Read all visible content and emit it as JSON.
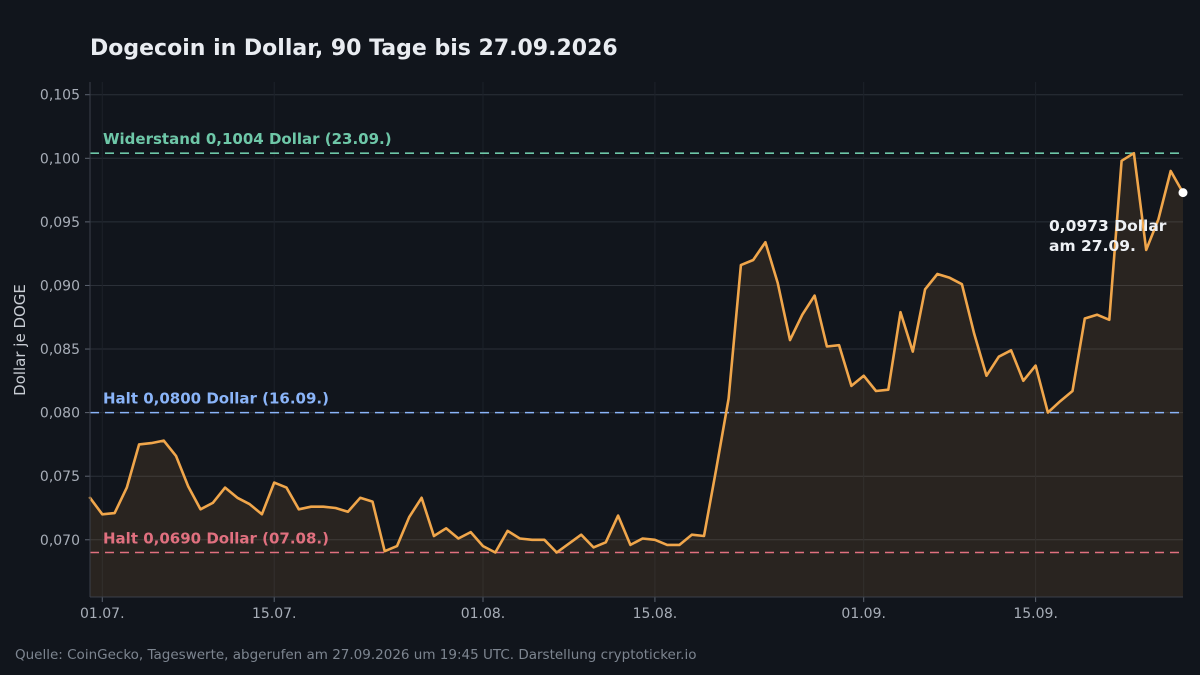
{
  "title": "Dogecoin in Dollar, 90 Tage bis 27.09.2026",
  "source": "Quelle: CoinGecko, Tageswerte, abgerufen am 27.09.2026 um 19:45 UTC. Darstellung cryptoticker.io",
  "colors": {
    "background": "#11151c",
    "line": "#f0a64b",
    "resistance": "#6ec7a8",
    "support_high": "#8ab4f8",
    "support_low": "#e0707f"
  },
  "chart_data": {
    "type": "line",
    "title": "Dogecoin in Dollar, 90 Tage bis 27.09.2026",
    "xlabel": "",
    "ylabel": "Dollar je DOGE",
    "x_start": "2026-06-30",
    "x_end": "2026-09-27",
    "ylim": [
      0.0655,
      0.106
    ],
    "grid": true,
    "yticks": [
      {
        "value": 0.07,
        "label": "0,070"
      },
      {
        "value": 0.075,
        "label": "0,075"
      },
      {
        "value": 0.08,
        "label": "0,080"
      },
      {
        "value": 0.085,
        "label": "0,085"
      },
      {
        "value": 0.09,
        "label": "0,090"
      },
      {
        "value": 0.095,
        "label": "0,095"
      },
      {
        "value": 0.1,
        "label": "0,100"
      },
      {
        "value": 0.105,
        "label": "0,105"
      }
    ],
    "xticks": [
      {
        "date": "2026-07-01",
        "label": "01.07."
      },
      {
        "date": "2026-07-15",
        "label": "15.07."
      },
      {
        "date": "2026-08-01",
        "label": "01.08."
      },
      {
        "date": "2026-08-15",
        "label": "15.08."
      },
      {
        "date": "2026-09-01",
        "label": "01.09."
      },
      {
        "date": "2026-09-15",
        "label": "15.09."
      }
    ],
    "series": [
      {
        "values": [
          {
            "date": "2026-06-30",
            "value": 0.0733
          },
          {
            "date": "2026-07-01",
            "value": 0.072
          },
          {
            "date": "2026-07-02",
            "value": 0.0721
          },
          {
            "date": "2026-07-03",
            "value": 0.0741
          },
          {
            "date": "2026-07-04",
            "value": 0.0775
          },
          {
            "date": "2026-07-05",
            "value": 0.0776
          },
          {
            "date": "2026-07-06",
            "value": 0.0778
          },
          {
            "date": "2026-07-07",
            "value": 0.0766
          },
          {
            "date": "2026-07-08",
            "value": 0.0742
          },
          {
            "date": "2026-07-09",
            "value": 0.0724
          },
          {
            "date": "2026-07-10",
            "value": 0.0729
          },
          {
            "date": "2026-07-11",
            "value": 0.0741
          },
          {
            "date": "2026-07-12",
            "value": 0.0733
          },
          {
            "date": "2026-07-13",
            "value": 0.0728
          },
          {
            "date": "2026-07-14",
            "value": 0.072
          },
          {
            "date": "2026-07-15",
            "value": 0.0745
          },
          {
            "date": "2026-07-16",
            "value": 0.0741
          },
          {
            "date": "2026-07-17",
            "value": 0.0724
          },
          {
            "date": "2026-07-18",
            "value": 0.0726
          },
          {
            "date": "2026-07-19",
            "value": 0.0726
          },
          {
            "date": "2026-07-20",
            "value": 0.0725
          },
          {
            "date": "2026-07-21",
            "value": 0.0722
          },
          {
            "date": "2026-07-22",
            "value": 0.0733
          },
          {
            "date": "2026-07-23",
            "value": 0.073
          },
          {
            "date": "2026-07-24",
            "value": 0.0691
          },
          {
            "date": "2026-07-25",
            "value": 0.0695
          },
          {
            "date": "2026-07-26",
            "value": 0.0718
          },
          {
            "date": "2026-07-27",
            "value": 0.0733
          },
          {
            "date": "2026-07-28",
            "value": 0.0703
          },
          {
            "date": "2026-07-29",
            "value": 0.0709
          },
          {
            "date": "2026-07-30",
            "value": 0.0701
          },
          {
            "date": "2026-07-31",
            "value": 0.0706
          },
          {
            "date": "2026-08-01",
            "value": 0.0695
          },
          {
            "date": "2026-08-02",
            "value": 0.069
          },
          {
            "date": "2026-08-03",
            "value": 0.0707
          },
          {
            "date": "2026-08-04",
            "value": 0.0701
          },
          {
            "date": "2026-08-05",
            "value": 0.07
          },
          {
            "date": "2026-08-06",
            "value": 0.07
          },
          {
            "date": "2026-08-07",
            "value": 0.069
          },
          {
            "date": "2026-08-08",
            "value": 0.0697
          },
          {
            "date": "2026-08-09",
            "value": 0.0704
          },
          {
            "date": "2026-08-10",
            "value": 0.0694
          },
          {
            "date": "2026-08-11",
            "value": 0.0698
          },
          {
            "date": "2026-08-12",
            "value": 0.0719
          },
          {
            "date": "2026-08-13",
            "value": 0.0696
          },
          {
            "date": "2026-08-14",
            "value": 0.0701
          },
          {
            "date": "2026-08-15",
            "value": 0.07
          },
          {
            "date": "2026-08-16",
            "value": 0.0696
          },
          {
            "date": "2026-08-17",
            "value": 0.0696
          },
          {
            "date": "2026-08-18",
            "value": 0.0704
          },
          {
            "date": "2026-08-19",
            "value": 0.0703
          },
          {
            "date": "2026-08-20",
            "value": 0.0756
          },
          {
            "date": "2026-08-21",
            "value": 0.0811
          },
          {
            "date": "2026-08-22",
            "value": 0.0916
          },
          {
            "date": "2026-08-23",
            "value": 0.092
          },
          {
            "date": "2026-08-24",
            "value": 0.0934
          },
          {
            "date": "2026-08-25",
            "value": 0.0902
          },
          {
            "date": "2026-08-26",
            "value": 0.0857
          },
          {
            "date": "2026-08-27",
            "value": 0.0877
          },
          {
            "date": "2026-08-28",
            "value": 0.0892
          },
          {
            "date": "2026-08-29",
            "value": 0.0852
          },
          {
            "date": "2026-08-30",
            "value": 0.0853
          },
          {
            "date": "2026-08-31",
            "value": 0.0821
          },
          {
            "date": "2026-09-01",
            "value": 0.0829
          },
          {
            "date": "2026-09-02",
            "value": 0.0817
          },
          {
            "date": "2026-09-03",
            "value": 0.0818
          },
          {
            "date": "2026-09-04",
            "value": 0.0879
          },
          {
            "date": "2026-09-05",
            "value": 0.0848
          },
          {
            "date": "2026-09-06",
            "value": 0.0897
          },
          {
            "date": "2026-09-07",
            "value": 0.0909
          },
          {
            "date": "2026-09-08",
            "value": 0.0906
          },
          {
            "date": "2026-09-09",
            "value": 0.0901
          },
          {
            "date": "2026-09-10",
            "value": 0.0862
          },
          {
            "date": "2026-09-11",
            "value": 0.0829
          },
          {
            "date": "2026-09-12",
            "value": 0.0844
          },
          {
            "date": "2026-09-13",
            "value": 0.0849
          },
          {
            "date": "2026-09-14",
            "value": 0.0825
          },
          {
            "date": "2026-09-15",
            "value": 0.0837
          },
          {
            "date": "2026-09-16",
            "value": 0.08
          },
          {
            "date": "2026-09-17",
            "value": 0.0809
          },
          {
            "date": "2026-09-18",
            "value": 0.0817
          },
          {
            "date": "2026-09-19",
            "value": 0.0874
          },
          {
            "date": "2026-09-20",
            "value": 0.0877
          },
          {
            "date": "2026-09-21",
            "value": 0.0873
          },
          {
            "date": "2026-09-22",
            "value": 0.0998
          },
          {
            "date": "2026-09-23",
            "value": 0.1004
          },
          {
            "date": "2026-09-24",
            "value": 0.0928
          },
          {
            "date": "2026-09-25",
            "value": 0.0952
          },
          {
            "date": "2026-09-26",
            "value": 0.099
          },
          {
            "date": "2026-09-27",
            "value": 0.0973
          }
        ]
      }
    ],
    "reference_lines": [
      {
        "value": 0.1004,
        "label": "Widerstand 0,1004 Dollar (23.09.)",
        "color": "#6ec7a8"
      },
      {
        "value": 0.08,
        "label": "Halt 0,0800 Dollar (16.09.)",
        "color": "#8ab4f8"
      },
      {
        "value": 0.069,
        "label": "Halt 0,0690 Dollar (07.08.)",
        "color": "#e0707f"
      }
    ],
    "annotation": {
      "date": "2026-09-27",
      "value": 0.0973,
      "line1": "0,0973 Dollar",
      "line2": "am 27.09."
    }
  }
}
